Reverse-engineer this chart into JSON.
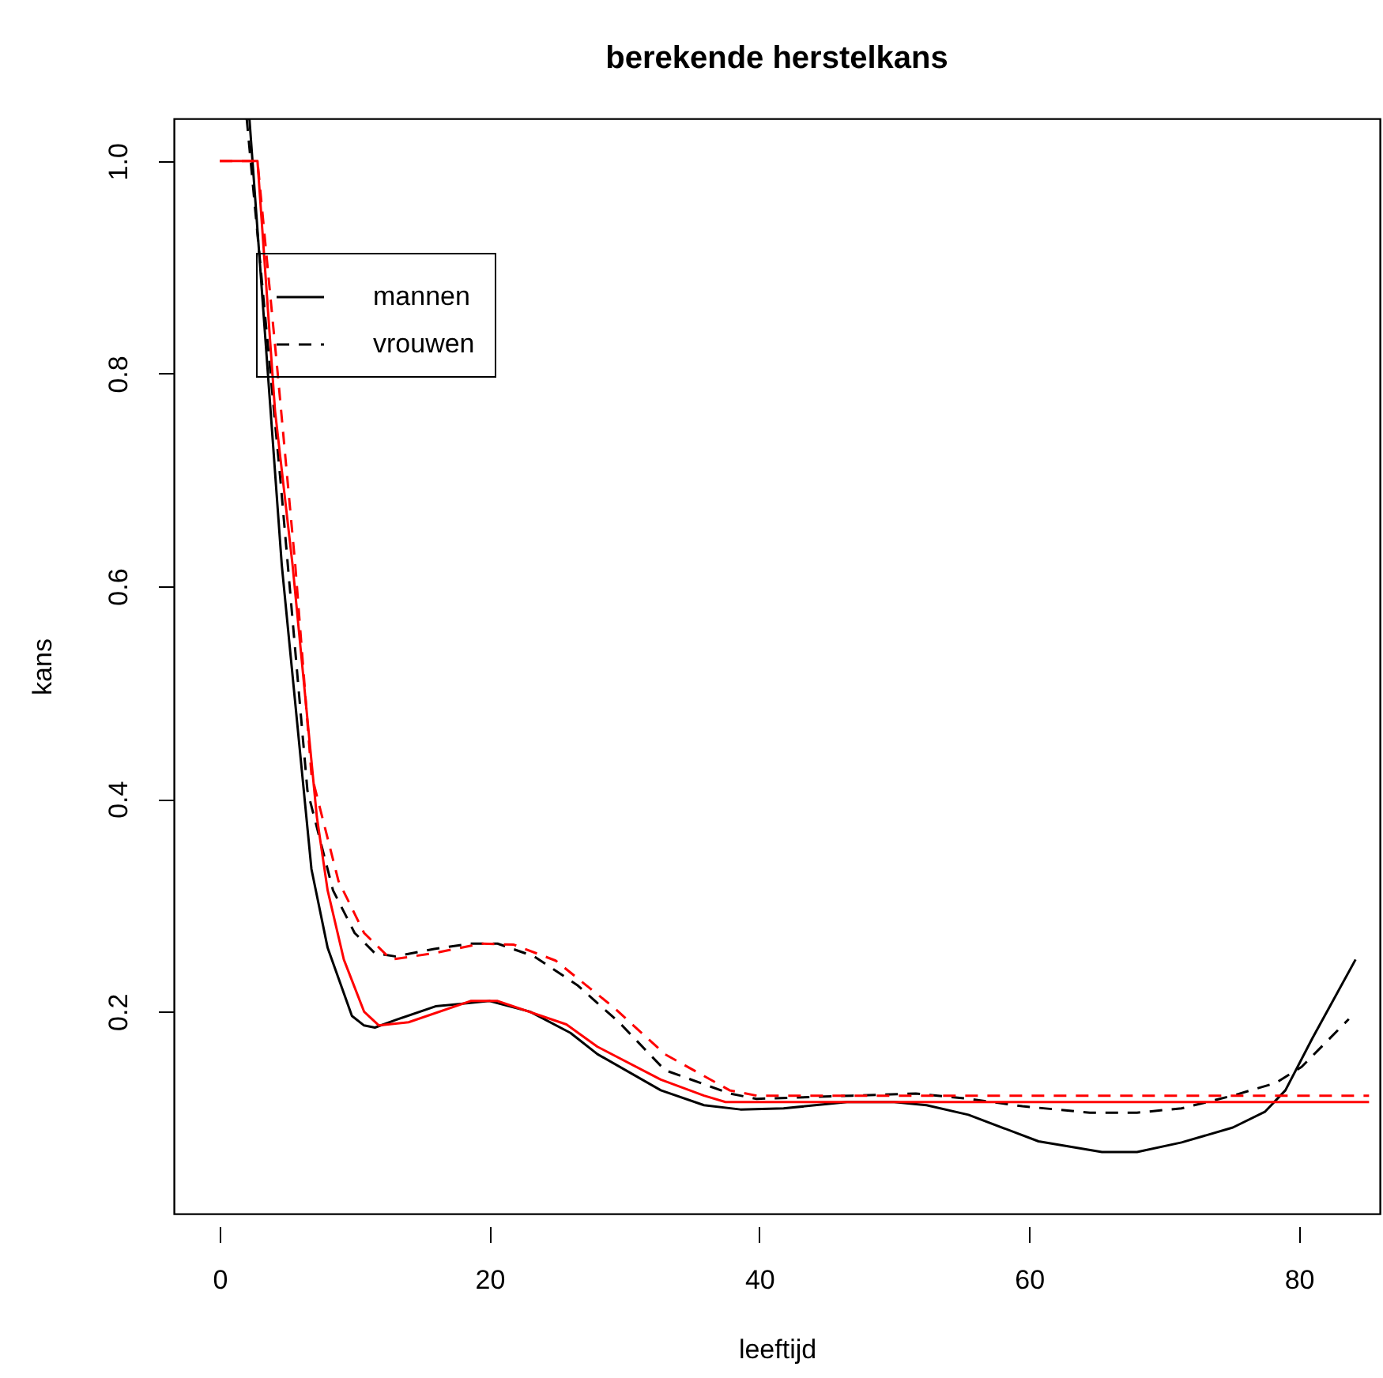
{
  "chart_data": {
    "type": "line",
    "title": "berekende herstelkans",
    "xlabel": "leeftijd",
    "ylabel": "kans",
    "xlim": [
      -3.4,
      86
    ],
    "ylim": [
      0.01,
      1.04
    ],
    "xticks": [
      0,
      20,
      40,
      60,
      80
    ],
    "yticks": [
      {
        "value": 0.2,
        "label": "0.2"
      },
      {
        "value": 0.4,
        "label": "0.4"
      },
      {
        "value": 0.6,
        "label": "0.6"
      },
      {
        "value": 0.8,
        "label": "0.8"
      },
      {
        "value": 1.0,
        "label": "1.0"
      }
    ],
    "grid": false,
    "legend": "top left",
    "marker": "none",
    "series": [
      {
        "name": "mannen",
        "color": "#000000",
        "line_style": "solid",
        "x": [
          2.2,
          4.6,
          6.8,
          8,
          9.8,
          10.7,
          11.5,
          13,
          16,
          20,
          23,
          26,
          28,
          32.7,
          35.9,
          38.6,
          41.8,
          46.5,
          50,
          52.4,
          55.5,
          60.7,
          65.4,
          68,
          71.3,
          75.1,
          77.5,
          79,
          81,
          84.2
        ],
        "values": [
          1.04,
          0.62,
          0.334,
          0.26,
          0.196,
          0.187,
          0.185,
          0.192,
          0.205,
          0.21,
          0.2,
          0.18,
          0.16,
          0.126,
          0.112,
          0.108,
          0.109,
          0.115,
          0.115,
          0.112,
          0.103,
          0.078,
          0.068,
          0.068,
          0.077,
          0.091,
          0.106,
          0.126,
          0.175,
          0.249
        ]
      },
      {
        "name": "vrouwen",
        "color": "#000000",
        "line_style": "dashed",
        "x": [
          2.0,
          4.5,
          6.5,
          8.4,
          10,
          11.5,
          13,
          15.9,
          18.6,
          20.6,
          23.3,
          26.5,
          29.6,
          33,
          37.8,
          39.8,
          46.9,
          51.6,
          55.5,
          59.5,
          64.5,
          68,
          71.3,
          75.1,
          78.3,
          80.2,
          83.7
        ],
        "values": [
          1.04,
          0.7,
          0.408,
          0.314,
          0.274,
          0.255,
          0.252,
          0.259,
          0.264,
          0.264,
          0.252,
          0.225,
          0.19,
          0.145,
          0.123,
          0.118,
          0.121,
          0.123,
          0.118,
          0.111,
          0.105,
          0.105,
          0.109,
          0.121,
          0.133,
          0.148,
          0.193
        ]
      },
      {
        "color": "#ff0000",
        "line_style": "solid",
        "x": [
          0,
          2.8,
          4.1,
          5.4,
          7.2,
          8,
          9.2,
          10.7,
          11.8,
          14,
          18.6,
          20.6,
          25.7,
          28,
          32.7,
          35.9,
          37.5,
          85.2
        ],
        "values": [
          1.0,
          1.0,
          0.765,
          0.62,
          0.383,
          0.314,
          0.249,
          0.2,
          0.187,
          0.19,
          0.21,
          0.21,
          0.188,
          0.167,
          0.136,
          0.121,
          0.115,
          0.115
        ]
      },
      {
        "color": "#ff0000",
        "line_style": "dashed",
        "x": [
          0,
          2.8,
          4.3,
          5.6,
          6.8,
          8.8,
          10.7,
          12.7,
          15.9,
          19.4,
          21.8,
          24.9,
          29.2,
          33,
          37.8,
          39.8,
          85.2
        ],
        "values": [
          1.0,
          1.0,
          0.8,
          0.62,
          0.423,
          0.323,
          0.274,
          0.249,
          0.255,
          0.264,
          0.263,
          0.248,
          0.204,
          0.16,
          0.126,
          0.121,
          0.121
        ]
      }
    ]
  }
}
